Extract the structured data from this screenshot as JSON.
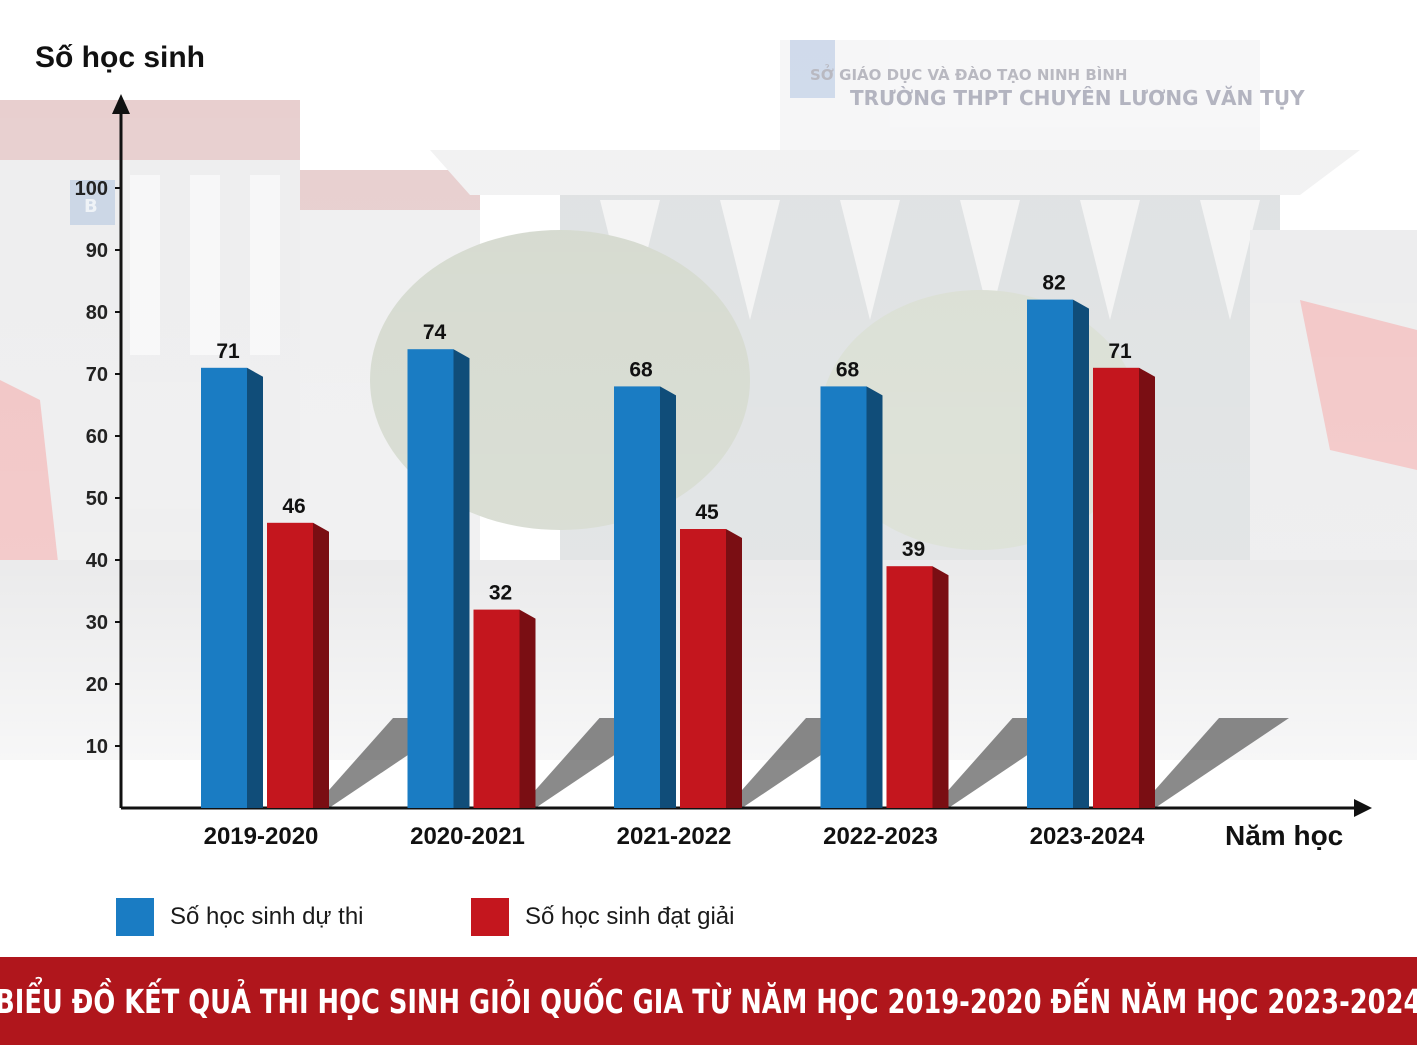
{
  "chart_data": {
    "type": "bar",
    "ylabel": "Số học sinh",
    "xlabel": "Năm học",
    "categories": [
      "2019-2020",
      "2020-2021",
      "2021-2022",
      "2022-2023",
      "2023-2024"
    ],
    "series": [
      {
        "name": "Số học sinh dự thi",
        "values": [
          71,
          74,
          68,
          68,
          82
        ],
        "color": "#1a7cc3"
      },
      {
        "name": "Số học sinh đạt giải",
        "values": [
          46,
          32,
          45,
          39,
          71
        ],
        "color": "#c4161e"
      }
    ],
    "yticks": [
      10,
      20,
      30,
      40,
      50,
      60,
      70,
      80,
      90,
      100
    ],
    "ylim": [
      0,
      100
    ],
    "legend": "bottom-left",
    "grid": false
  },
  "title": "BIỂU ĐỒ KẾT QUẢ THI HỌC SINH GIỎI QUỐC GIA TỪ NĂM HỌC 2019-2020 ĐẾN NĂM HỌC 2023-2024",
  "background": {
    "sign_line1": "SỞ GIÁO DỤC VÀ ĐÀO TẠO NINH BÌNH",
    "sign_line2": "TRƯỜNG THPT CHUYÊN LƯƠNG VĂN TỤY",
    "building_badge": "B"
  }
}
